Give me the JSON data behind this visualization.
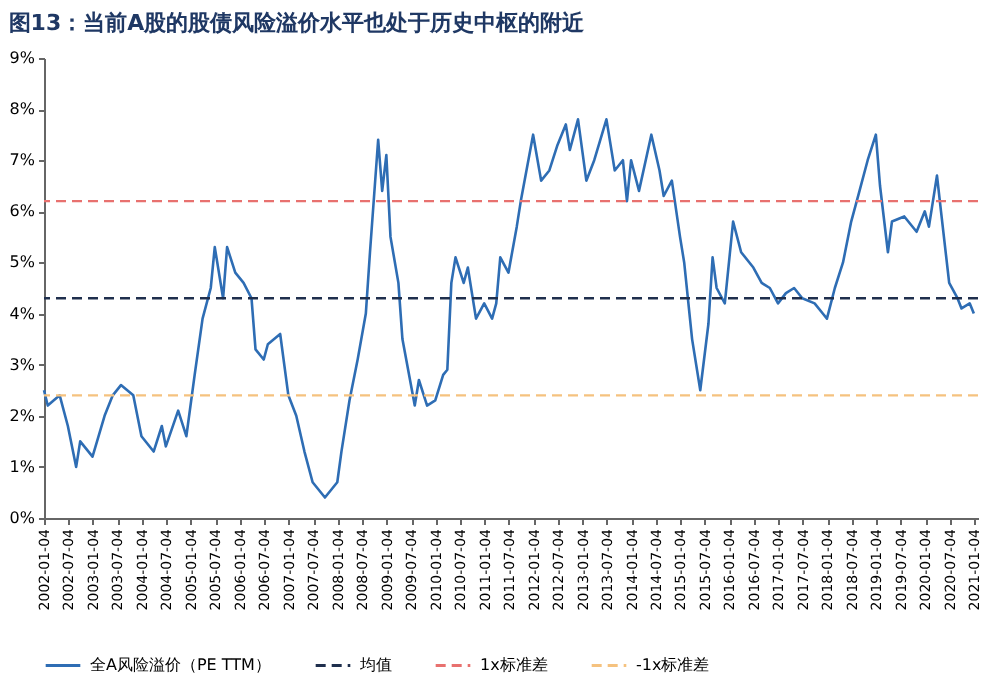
{
  "chart_data": {
    "type": "line",
    "title": "图13：当前A股的股债风险溢价水平也处于历史中枢的附近",
    "x": [
      "2002-01-04",
      "2002-02",
      "2002-05",
      "2002-07",
      "2002-09",
      "2002-10",
      "2003-01",
      "2003-04",
      "2003-06",
      "2003-08",
      "2003-11",
      "2004-01",
      "2004-04",
      "2004-06",
      "2004-07",
      "2004-10",
      "2004-12",
      "2005-02",
      "2005-04",
      "2005-06",
      "2005-07",
      "2005-09",
      "2005-10",
      "2005-12",
      "2006-02",
      "2006-04",
      "2006-05",
      "2006-07",
      "2006-08",
      "2006-11",
      "2007-01",
      "2007-03",
      "2007-05",
      "2007-07",
      "2007-10",
      "2008-01",
      "2008-02",
      "2008-04",
      "2008-06",
      "2008-08",
      "2008-09",
      "2008-11",
      "2008-12",
      "2009-01",
      "2009-02",
      "2009-04",
      "2009-05",
      "2009-08",
      "2009-09",
      "2009-11",
      "2010-01",
      "2010-03",
      "2010-04",
      "2010-05",
      "2010-06",
      "2010-08",
      "2010-09",
      "2010-11",
      "2011-01",
      "2011-03",
      "2011-04",
      "2011-05",
      "2011-07",
      "2011-09",
      "2011-10",
      "2012-01",
      "2012-03",
      "2012-05",
      "2012-07",
      "2012-09",
      "2012-10",
      "2012-12",
      "2013-02",
      "2013-04",
      "2013-07",
      "2013-09",
      "2013-11",
      "2013-12",
      "2014-01",
      "2014-03",
      "2014-06",
      "2014-08",
      "2014-09",
      "2014-11",
      "2015-01",
      "2015-02",
      "2015-04",
      "2015-06",
      "2015-08",
      "2015-09",
      "2015-10",
      "2015-12",
      "2016-02",
      "2016-04",
      "2016-07",
      "2016-09",
      "2016-11",
      "2017-01",
      "2017-03",
      "2017-05",
      "2017-07",
      "2017-10",
      "2017-12",
      "2018-01",
      "2018-03",
      "2018-05",
      "2018-07",
      "2018-09",
      "2018-11",
      "2019-01",
      "2019-02",
      "2019-04",
      "2019-05",
      "2019-08",
      "2019-11",
      "2020-01",
      "2020-02",
      "2020-04",
      "2020-05",
      "2020-07",
      "2020-09",
      "2020-10",
      "2020-12",
      "2021-01"
    ],
    "series": [
      {
        "name": "全A风险溢价（PE TTM）",
        "color": "#2e6db4",
        "values": [
          2.5,
          2.2,
          2.4,
          1.8,
          1.0,
          1.5,
          1.2,
          2.0,
          2.4,
          2.6,
          2.4,
          1.6,
          1.3,
          1.8,
          1.4,
          2.1,
          1.6,
          2.8,
          3.9,
          4.5,
          5.3,
          4.3,
          5.3,
          4.8,
          4.6,
          4.3,
          3.3,
          3.1,
          3.4,
          3.6,
          2.4,
          2.0,
          1.3,
          0.7,
          0.4,
          0.7,
          1.3,
          2.3,
          3.1,
          4.0,
          5.2,
          7.4,
          6.4,
          7.1,
          5.5,
          4.6,
          3.5,
          2.2,
          2.7,
          2.2,
          2.3,
          2.8,
          2.9,
          4.6,
          5.1,
          4.6,
          4.9,
          3.9,
          4.2,
          3.9,
          4.2,
          5.1,
          4.8,
          5.7,
          6.2,
          7.5,
          6.6,
          6.8,
          7.3,
          7.7,
          7.2,
          7.8,
          6.6,
          7.0,
          7.8,
          6.8,
          7.0,
          6.2,
          7.0,
          6.4,
          7.5,
          6.8,
          6.3,
          6.6,
          5.5,
          5.0,
          3.5,
          2.5,
          3.8,
          5.1,
          4.5,
          4.2,
          5.8,
          5.2,
          4.9,
          4.6,
          4.5,
          4.2,
          4.4,
          4.5,
          4.3,
          4.2,
          4.0,
          3.9,
          4.5,
          5.0,
          5.8,
          6.4,
          7.0,
          7.5,
          6.5,
          5.2,
          5.8,
          5.9,
          5.6,
          6.0,
          5.7,
          6.7,
          6.0,
          4.6,
          4.3,
          4.1,
          4.2,
          4.0
        ]
      }
    ],
    "ref_lines": [
      {
        "axis": "y",
        "value": 4.3,
        "label": "均值",
        "color": "#1f2f4d",
        "line_style": "dashed"
      },
      {
        "axis": "y",
        "value": 6.2,
        "label": "1x标准差",
        "color": "#e8716f",
        "line_style": "dashed"
      },
      {
        "axis": "y",
        "value": 2.4,
        "label": "-1x标准差",
        "color": "#f5c27f",
        "line_style": "dashed"
      }
    ],
    "xlim": [
      "2002-01-04",
      "2021-02-01"
    ],
    "xticks": [
      "2002-01-04",
      "2002-07-04",
      "2003-01-04",
      "2003-07-04",
      "2004-01-04",
      "2004-07-04",
      "2005-01-04",
      "2005-07-04",
      "2006-01-04",
      "2006-07-04",
      "2007-01-04",
      "2007-07-04",
      "2008-01-04",
      "2008-07-04",
      "2009-01-04",
      "2009-07-04",
      "2010-01-04",
      "2010-07-04",
      "2011-01-04",
      "2011-07-04",
      "2012-01-04",
      "2012-07-04",
      "2013-01-04",
      "2013-07-04",
      "2014-01-04",
      "2014-07-04",
      "2015-01-04",
      "2015-07-04",
      "2016-01-04",
      "2016-07-04",
      "2017-01-04",
      "2017-07-04",
      "2018-01-04",
      "2018-07-04",
      "2019-01-04",
      "2019-07-04",
      "2020-01-04",
      "2020-07-04",
      "2021-01-04"
    ],
    "ylim": [
      0,
      9
    ],
    "yticks": [
      {
        "value": 0,
        "label": "0%"
      },
      {
        "value": 1,
        "label": "1%"
      },
      {
        "value": 2,
        "label": "2%"
      },
      {
        "value": 3,
        "label": "3%"
      },
      {
        "value": 4,
        "label": "4%"
      },
      {
        "value": 5,
        "label": "5%"
      },
      {
        "value": 6,
        "label": "6%"
      },
      {
        "value": 7,
        "label": "7%"
      },
      {
        "value": 8,
        "label": "8%"
      },
      {
        "value": 9,
        "label": "9%"
      }
    ],
    "grid": false,
    "legend": "bottom",
    "line_style": "solid"
  }
}
